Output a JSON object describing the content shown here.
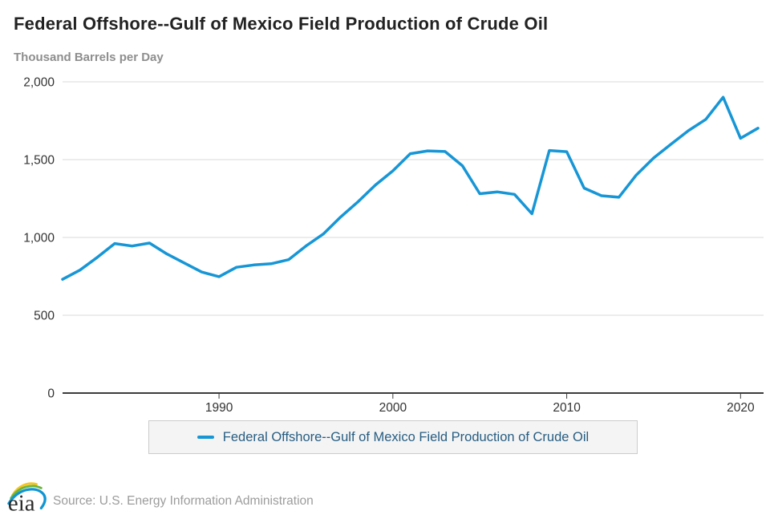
{
  "header": {
    "title": "Federal Offshore--Gulf of Mexico Field Production of Crude Oil",
    "unit_label": "Thousand Barrels per Day"
  },
  "legend": {
    "label": "Federal Offshore--Gulf of Mexico Field Production of Crude Oil"
  },
  "footer": {
    "logo_text": "eia",
    "source": "Source: U.S. Energy Information Administration"
  },
  "colors": {
    "line": "#1796d6",
    "grid": "#d9d9d9",
    "axis": "#3c3c3c",
    "tick_label": "#333333",
    "legend_text": "#275d82",
    "logo_yellow": "#f7c521",
    "logo_green": "#6fb43c",
    "logo_blue": "#0f95d3"
  },
  "chart_data": {
    "type": "line",
    "title": "Federal Offshore--Gulf of Mexico Field Production of Crude Oil",
    "xlabel": "",
    "ylabel": "Thousand Barrels per Day",
    "ylim": [
      0,
      2000
    ],
    "yticks": [
      0,
      500,
      1000,
      1500,
      2000
    ],
    "ytick_labels": [
      "0",
      "500",
      "1,000",
      "1,500",
      "2,000"
    ],
    "xticks": [
      1990,
      2000,
      2010,
      2020
    ],
    "xtick_labels": [
      "1990",
      "2000",
      "2010",
      "2020"
    ],
    "grid": true,
    "legend_position": "bottom",
    "series": [
      {
        "name": "Federal Offshore--Gulf of Mexico Field Production of Crude Oil",
        "x": [
          1981,
          1982,
          1983,
          1984,
          1985,
          1986,
          1987,
          1988,
          1989,
          1990,
          1991,
          1992,
          1993,
          1994,
          1995,
          1996,
          1997,
          1998,
          1999,
          2000,
          2001,
          2002,
          2003,
          2004,
          2005,
          2006,
          2007,
          2008,
          2009,
          2010,
          2011,
          2012,
          2013,
          2014,
          2015,
          2016,
          2017,
          2018,
          2019,
          2020,
          2021
        ],
        "values": [
          731,
          790,
          872,
          961,
          945,
          964,
          894,
          836,
          778,
          748,
          808,
          823,
          831,
          857,
          945,
          1022,
          1132,
          1230,
          1337,
          1428,
          1538,
          1556,
          1552,
          1461,
          1281,
          1293,
          1277,
          1152,
          1559,
          1551,
          1317,
          1268,
          1258,
          1401,
          1511,
          1599,
          1686,
          1759,
          1901,
          1637,
          1702
        ]
      }
    ]
  }
}
